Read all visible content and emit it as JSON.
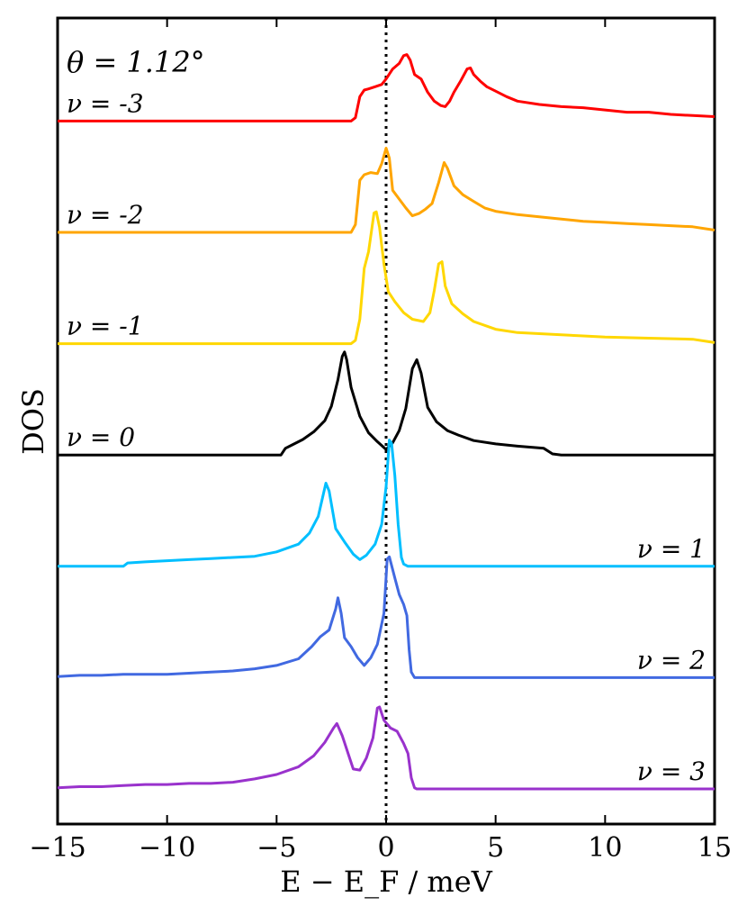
{
  "chart_data": {
    "type": "line",
    "title": "",
    "annotation": "θ = 1.12°",
    "xlabel": "E − E_F / meV",
    "ylabel": "DOS",
    "xlim": [
      -15,
      15
    ],
    "xticks": [
      -15,
      -10,
      -5,
      0,
      5,
      10,
      15
    ],
    "xtick_labels": [
      "−15",
      "−10",
      "−5",
      "0",
      "5",
      "10",
      "15"
    ],
    "yticks": "none",
    "fermi_level": 0,
    "curve_offset_step": 1,
    "series": [
      {
        "name": "ν = -3",
        "label": "ν = -3",
        "color": "#ff0000",
        "offset": 6,
        "label_side": "left",
        "points": [
          [
            -15,
            0
          ],
          [
            -1.6,
            0
          ],
          [
            -1.4,
            0.03
          ],
          [
            -1.2,
            0.22
          ],
          [
            -1.0,
            0.28
          ],
          [
            -0.8,
            0.29
          ],
          [
            -0.5,
            0.31
          ],
          [
            -0.2,
            0.33
          ],
          [
            0.0,
            0.38
          ],
          [
            0.3,
            0.47
          ],
          [
            0.6,
            0.52
          ],
          [
            0.8,
            0.59
          ],
          [
            0.95,
            0.6
          ],
          [
            1.1,
            0.55
          ],
          [
            1.3,
            0.42
          ],
          [
            1.6,
            0.38
          ],
          [
            1.9,
            0.26
          ],
          [
            2.2,
            0.18
          ],
          [
            2.5,
            0.14
          ],
          [
            2.7,
            0.13
          ],
          [
            2.9,
            0.18
          ],
          [
            3.1,
            0.26
          ],
          [
            3.4,
            0.36
          ],
          [
            3.7,
            0.47
          ],
          [
            3.85,
            0.48
          ],
          [
            4.0,
            0.42
          ],
          [
            4.3,
            0.36
          ],
          [
            4.6,
            0.31
          ],
          [
            5.0,
            0.27
          ],
          [
            5.5,
            0.22
          ],
          [
            6.0,
            0.18
          ],
          [
            7.0,
            0.15
          ],
          [
            8.0,
            0.13
          ],
          [
            9.0,
            0.12
          ],
          [
            10.0,
            0.1
          ],
          [
            11.0,
            0.08
          ],
          [
            12.0,
            0.08
          ],
          [
            13.0,
            0.06
          ],
          [
            14.0,
            0.05
          ],
          [
            15.0,
            0.04
          ]
        ]
      },
      {
        "name": "ν = -2",
        "label": "ν = -2",
        "color": "#ffa500",
        "offset": 5,
        "label_side": "left",
        "points": [
          [
            -15,
            0
          ],
          [
            -1.6,
            0
          ],
          [
            -1.4,
            0.07
          ],
          [
            -1.2,
            0.47
          ],
          [
            -1.0,
            0.52
          ],
          [
            -0.7,
            0.54
          ],
          [
            -0.4,
            0.53
          ],
          [
            -0.2,
            0.62
          ],
          [
            0.0,
            0.76
          ],
          [
            0.15,
            0.67
          ],
          [
            0.3,
            0.38
          ],
          [
            0.6,
            0.3
          ],
          [
            0.9,
            0.22
          ],
          [
            1.2,
            0.15
          ],
          [
            1.5,
            0.17
          ],
          [
            1.8,
            0.21
          ],
          [
            2.1,
            0.26
          ],
          [
            2.4,
            0.45
          ],
          [
            2.65,
            0.63
          ],
          [
            2.8,
            0.58
          ],
          [
            3.1,
            0.42
          ],
          [
            3.5,
            0.34
          ],
          [
            4.0,
            0.28
          ],
          [
            4.5,
            0.22
          ],
          [
            5.0,
            0.19
          ],
          [
            6.0,
            0.16
          ],
          [
            7.0,
            0.14
          ],
          [
            8.0,
            0.12
          ],
          [
            9.0,
            0.1
          ],
          [
            10.0,
            0.09
          ],
          [
            11.0,
            0.08
          ],
          [
            12.0,
            0.07
          ],
          [
            13.0,
            0.06
          ],
          [
            14.0,
            0.05
          ],
          [
            15.0,
            0.02
          ]
        ]
      },
      {
        "name": "ν = -1",
        "label": "ν = -1",
        "color": "#ffd700",
        "offset": 4,
        "label_side": "left",
        "points": [
          [
            -15,
            0
          ],
          [
            -1.6,
            0
          ],
          [
            -1.4,
            0.03
          ],
          [
            -1.2,
            0.22
          ],
          [
            -1.0,
            0.68
          ],
          [
            -0.8,
            0.83
          ],
          [
            -0.55,
            1.18
          ],
          [
            -0.45,
            1.19
          ],
          [
            -0.3,
            1.05
          ],
          [
            -0.1,
            0.72
          ],
          [
            0.1,
            0.47
          ],
          [
            0.4,
            0.38
          ],
          [
            0.8,
            0.28
          ],
          [
            1.2,
            0.22
          ],
          [
            1.7,
            0.2
          ],
          [
            2.0,
            0.28
          ],
          [
            2.2,
            0.48
          ],
          [
            2.4,
            0.72
          ],
          [
            2.55,
            0.74
          ],
          [
            2.7,
            0.52
          ],
          [
            3.0,
            0.36
          ],
          [
            3.5,
            0.27
          ],
          [
            4.0,
            0.2
          ],
          [
            5.0,
            0.13
          ],
          [
            6.0,
            0.1
          ],
          [
            7.0,
            0.09
          ],
          [
            8.0,
            0.08
          ],
          [
            9.0,
            0.07
          ],
          [
            10.0,
            0.06
          ],
          [
            12.0,
            0.05
          ],
          [
            14.0,
            0.04
          ],
          [
            15.0,
            0.01
          ]
        ]
      },
      {
        "name": "ν = 0",
        "label": "ν = 0",
        "color": "#000000",
        "offset": 3,
        "label_side": "left",
        "points": [
          [
            -15,
            0
          ],
          [
            -4.8,
            0
          ],
          [
            -4.6,
            0.06
          ],
          [
            -4.3,
            0.09
          ],
          [
            -3.8,
            0.14
          ],
          [
            -3.3,
            0.21
          ],
          [
            -2.8,
            0.31
          ],
          [
            -2.5,
            0.44
          ],
          [
            -2.2,
            0.68
          ],
          [
            -2.0,
            0.89
          ],
          [
            -1.9,
            0.93
          ],
          [
            -1.8,
            0.86
          ],
          [
            -1.6,
            0.61
          ],
          [
            -1.2,
            0.35
          ],
          [
            -0.8,
            0.2
          ],
          [
            -0.4,
            0.12
          ],
          [
            0.0,
            0.05
          ],
          [
            0.3,
            0.11
          ],
          [
            0.6,
            0.22
          ],
          [
            0.9,
            0.42
          ],
          [
            1.2,
            0.78
          ],
          [
            1.4,
            0.86
          ],
          [
            1.6,
            0.74
          ],
          [
            1.9,
            0.43
          ],
          [
            2.3,
            0.3
          ],
          [
            2.8,
            0.22
          ],
          [
            3.3,
            0.18
          ],
          [
            4.0,
            0.13
          ],
          [
            5.0,
            0.1
          ],
          [
            6.0,
            0.08
          ],
          [
            7.2,
            0.06
          ],
          [
            7.6,
            0.01
          ],
          [
            8.0,
            0
          ],
          [
            15.0,
            0
          ]
        ]
      },
      {
        "name": "ν = 1",
        "label": "ν = 1",
        "color": "#00bfff",
        "offset": 2,
        "label_side": "right",
        "points": [
          [
            -15,
            0
          ],
          [
            -12.0,
            0
          ],
          [
            -11.8,
            0.03
          ],
          [
            -11.0,
            0.04
          ],
          [
            -10.0,
            0.05
          ],
          [
            -9.0,
            0.06
          ],
          [
            -8.0,
            0.07
          ],
          [
            -7.0,
            0.08
          ],
          [
            -6.0,
            0.09
          ],
          [
            -5.0,
            0.13
          ],
          [
            -4.0,
            0.2
          ],
          [
            -3.5,
            0.3
          ],
          [
            -3.1,
            0.45
          ],
          [
            -2.9,
            0.62
          ],
          [
            -2.75,
            0.75
          ],
          [
            -2.6,
            0.68
          ],
          [
            -2.3,
            0.34
          ],
          [
            -1.9,
            0.22
          ],
          [
            -1.5,
            0.11
          ],
          [
            -1.2,
            0.06
          ],
          [
            -0.9,
            0.1
          ],
          [
            -0.5,
            0.2
          ],
          [
            -0.2,
            0.38
          ],
          [
            0.0,
            0.72
          ],
          [
            0.15,
            1.14
          ],
          [
            0.25,
            1.11
          ],
          [
            0.4,
            0.82
          ],
          [
            0.55,
            0.38
          ],
          [
            0.7,
            0.08
          ],
          [
            0.8,
            0.02
          ],
          [
            1.0,
            0
          ],
          [
            15.0,
            0
          ]
        ]
      },
      {
        "name": "ν = 2",
        "label": "ν = 2",
        "color": "#4169e1",
        "offset": 1,
        "label_side": "right",
        "points": [
          [
            -15,
            0.01
          ],
          [
            -14.0,
            0.02
          ],
          [
            -13.0,
            0.02
          ],
          [
            -12.0,
            0.03
          ],
          [
            -11.0,
            0.03
          ],
          [
            -10.0,
            0.03
          ],
          [
            -9.0,
            0.04
          ],
          [
            -8.0,
            0.05
          ],
          [
            -7.0,
            0.06
          ],
          [
            -6.0,
            0.08
          ],
          [
            -5.0,
            0.11
          ],
          [
            -4.0,
            0.17
          ],
          [
            -3.4,
            0.28
          ],
          [
            -3.0,
            0.37
          ],
          [
            -2.6,
            0.43
          ],
          [
            -2.3,
            0.62
          ],
          [
            -2.2,
            0.72
          ],
          [
            -2.05,
            0.58
          ],
          [
            -1.9,
            0.36
          ],
          [
            -1.6,
            0.28
          ],
          [
            -1.3,
            0.18
          ],
          [
            -1.0,
            0.11
          ],
          [
            -0.7,
            0.18
          ],
          [
            -0.4,
            0.3
          ],
          [
            -0.1,
            0.58
          ],
          [
            0.05,
            1.07
          ],
          [
            0.15,
            1.09
          ],
          [
            0.4,
            0.9
          ],
          [
            0.6,
            0.75
          ],
          [
            0.8,
            0.66
          ],
          [
            0.95,
            0.56
          ],
          [
            1.05,
            0.25
          ],
          [
            1.15,
            0.05
          ],
          [
            1.3,
            0
          ],
          [
            15.0,
            0
          ]
        ]
      },
      {
        "name": "ν = 3",
        "label": "ν = 3",
        "color": "#9932cc",
        "offset": 0,
        "label_side": "right",
        "points": [
          [
            -15,
            0.01
          ],
          [
            -14.0,
            0.02
          ],
          [
            -13.0,
            0.02
          ],
          [
            -12.0,
            0.03
          ],
          [
            -11.0,
            0.04
          ],
          [
            -10.0,
            0.04
          ],
          [
            -9.0,
            0.05
          ],
          [
            -8.0,
            0.05
          ],
          [
            -7.0,
            0.06
          ],
          [
            -6.0,
            0.09
          ],
          [
            -5.0,
            0.13
          ],
          [
            -4.0,
            0.2
          ],
          [
            -3.3,
            0.3
          ],
          [
            -2.8,
            0.42
          ],
          [
            -2.4,
            0.55
          ],
          [
            -2.25,
            0.59
          ],
          [
            -2.0,
            0.48
          ],
          [
            -1.7,
            0.3
          ],
          [
            -1.5,
            0.18
          ],
          [
            -1.2,
            0.17
          ],
          [
            -0.9,
            0.28
          ],
          [
            -0.6,
            0.46
          ],
          [
            -0.4,
            0.73
          ],
          [
            -0.3,
            0.74
          ],
          [
            -0.1,
            0.62
          ],
          [
            0.2,
            0.55
          ],
          [
            0.5,
            0.52
          ],
          [
            0.8,
            0.41
          ],
          [
            1.0,
            0.32
          ],
          [
            1.15,
            0.1
          ],
          [
            1.3,
            0.01
          ],
          [
            1.4,
            0
          ],
          [
            15.0,
            0
          ]
        ]
      }
    ]
  }
}
